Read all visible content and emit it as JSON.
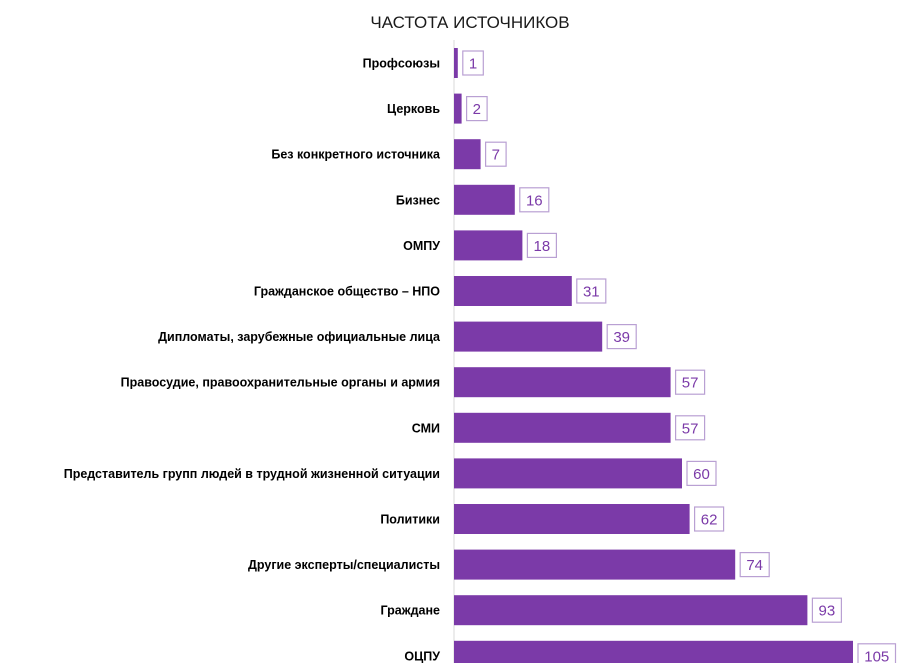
{
  "chart_data": {
    "type": "bar",
    "orientation": "horizontal",
    "title": "ЧАСТОТА ИСТОЧНИКОВ",
    "categories": [
      "Профсоюзы",
      "Церковь",
      "Без конкретного источника",
      "Бизнес",
      "ОМПУ",
      "Гражданское общество – НПО",
      "Дипломаты, зарубежные официальные лица",
      "Правосудие, правоохранительные органы и армия",
      "СМИ",
      "Представитель групп людей в трудной жизненной ситуации",
      "Политики",
      "Другие эксперты/специалисты",
      "Граждане",
      "ОЦПУ"
    ],
    "values": [
      1,
      2,
      7,
      16,
      18,
      31,
      39,
      57,
      57,
      60,
      62,
      74,
      93,
      105
    ],
    "xlim": [
      0,
      105
    ],
    "grid": false,
    "legend": "none",
    "data_labels": true,
    "colors": {
      "bar": "#7b3aa8",
      "label_border": "#b9a0d3",
      "label_text": "#7b3aa8",
      "axis": "#d9d9d9"
    }
  }
}
